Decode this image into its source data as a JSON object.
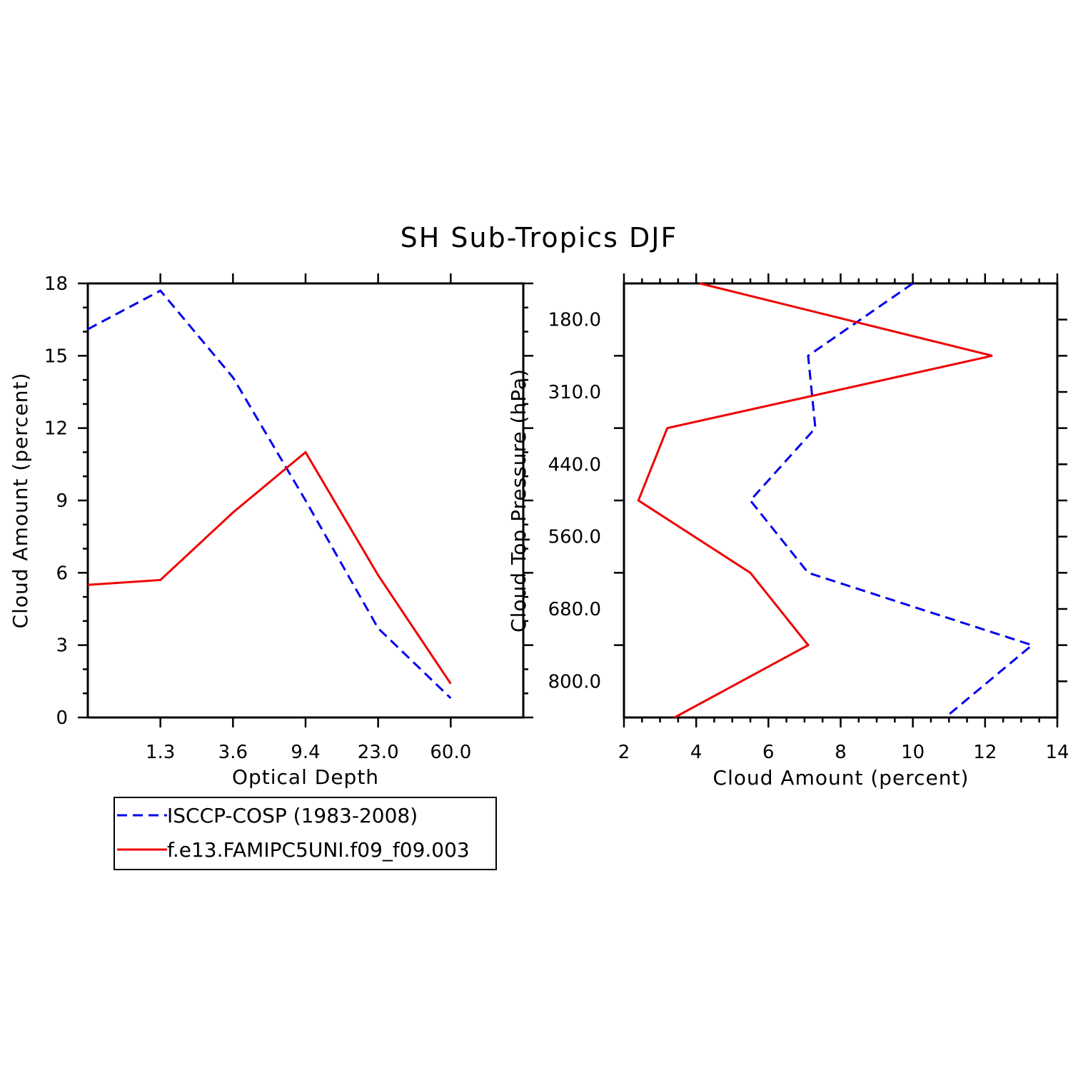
{
  "title": "SH Sub-Tropics DJF",
  "legend": {
    "items": [
      {
        "label": "ISCCP-COSP (1983-2008)",
        "color": "#0000ee",
        "style": "dashed"
      },
      {
        "label": "f.e13.FAMIPC5UNI.f09_f09.003",
        "color": "#ee0000",
        "style": "solid"
      }
    ]
  },
  "chart_data": [
    {
      "type": "line",
      "xlabel": "Optical Depth",
      "ylabel": "Cloud Amount (percent)",
      "x_tick_labels": [
        "1.3",
        "3.6",
        "9.4",
        "23.0",
        "60.0"
      ],
      "y_ticks": [
        0,
        3,
        6,
        9,
        12,
        15,
        18
      ],
      "ylim": [
        0,
        18
      ],
      "x_bins": [
        0,
        1,
        2,
        3,
        4,
        5,
        6
      ],
      "series": [
        {
          "name": "ISCCP-COSP (1983-2008)",
          "values": [
            16.1,
            17.7,
            14.1,
            9.0,
            3.7,
            0.8
          ]
        },
        {
          "name": "f.e13.FAMIPC5UNI.f09_f09.003",
          "values": [
            5.5,
            5.7,
            8.5,
            11.0,
            5.9,
            1.4
          ]
        }
      ]
    },
    {
      "type": "line",
      "xlabel": "Cloud Amount (percent)",
      "ylabel": "Cloud Top Pressure (hPa)",
      "x_ticks": [
        2,
        4,
        6,
        8,
        10,
        12,
        14
      ],
      "xlim": [
        2,
        14
      ],
      "y_tick_labels": [
        "180.0",
        "310.0",
        "440.0",
        "560.0",
        "680.0",
        "800.0"
      ],
      "y_levels": [
        0,
        1,
        2,
        3,
        4,
        5,
        6
      ],
      "series": [
        {
          "name": "ISCCP-COSP (1983-2008)",
          "values": [
            10.0,
            7.1,
            7.3,
            5.5,
            7.1,
            13.3,
            10.9
          ]
        },
        {
          "name": "f.e13.FAMIPC5UNI.f09_f09.003",
          "values": [
            4.1,
            12.2,
            3.2,
            2.4,
            5.5,
            7.1,
            3.4
          ]
        }
      ]
    }
  ]
}
